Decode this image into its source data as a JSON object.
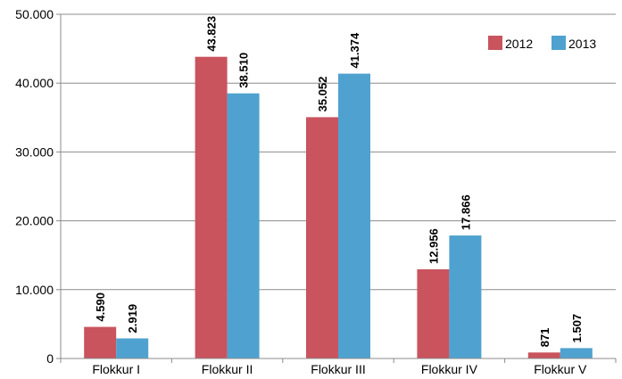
{
  "chart_data": {
    "type": "bar",
    "categories": [
      "Flokkur I",
      "Flokkur II",
      "Flokkur III",
      "Flokkur IV",
      "Flokkur V"
    ],
    "series": [
      {
        "name": "2012",
        "color": "#c9545e",
        "values": [
          4590,
          43823,
          35052,
          12956,
          871
        ],
        "labels": [
          "4.590",
          "43.823",
          "35.052",
          "12.956",
          "871"
        ]
      },
      {
        "name": "2013",
        "color": "#4fa2cf",
        "values": [
          2919,
          38510,
          41374,
          17866,
          1507
        ],
        "labels": [
          "2.919",
          "38.510",
          "41.374",
          "17.866",
          "1.507"
        ]
      }
    ],
    "ylim": [
      0,
      50000
    ],
    "yticks": [
      0,
      10000,
      20000,
      30000,
      40000,
      50000
    ],
    "ytick_labels": [
      "0",
      "10.000",
      "20.000",
      "30.000",
      "40.000",
      "50.000"
    ],
    "grid": true,
    "legend_position": "top-right"
  }
}
